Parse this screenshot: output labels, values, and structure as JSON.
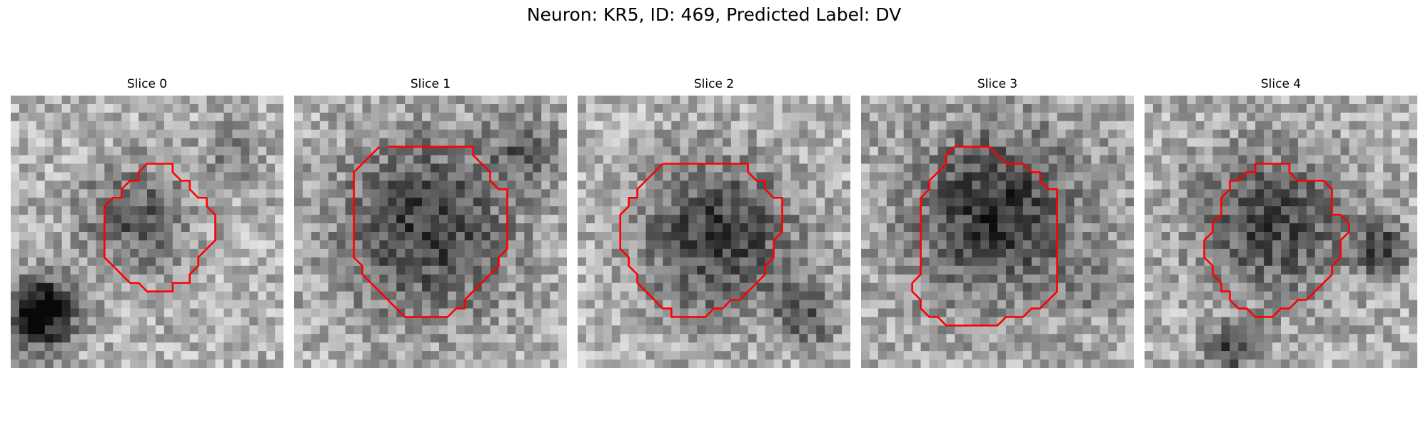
{
  "figure": {
    "title": "Neuron: KR5, ID: 469, Predicted Label: DV"
  },
  "panels": [
    {
      "title": "Slice 0"
    },
    {
      "title": "Slice 1"
    },
    {
      "title": "Slice 2"
    },
    {
      "title": "Slice 3"
    },
    {
      "title": "Slice 4"
    }
  ],
  "colors": {
    "contour": "#ff0000",
    "background": "#ffffff"
  }
}
